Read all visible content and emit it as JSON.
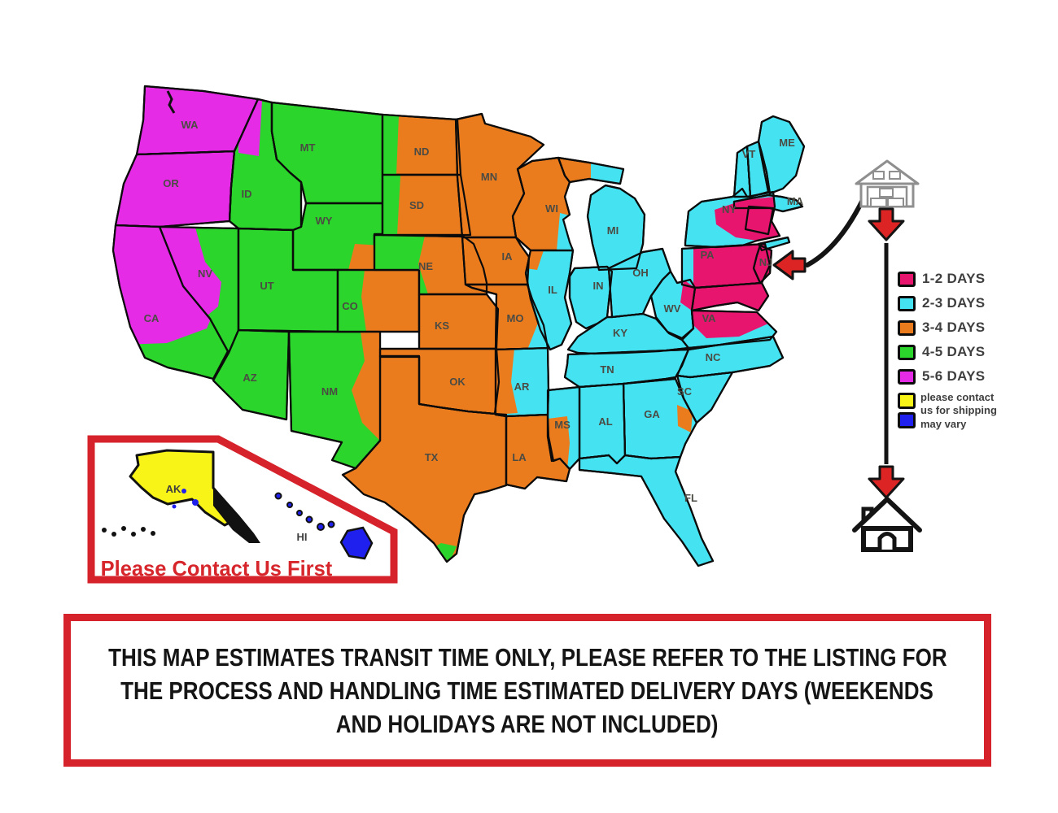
{
  "legend": {
    "items": [
      {
        "key": "1-2",
        "label": "1-2 DAYS",
        "color": "#E8156E"
      },
      {
        "key": "2-3",
        "label": "2-3 DAYS",
        "color": "#45E3F2"
      },
      {
        "key": "3-4",
        "label": "3-4 DAYS",
        "color": "#EB7C1E"
      },
      {
        "key": "4-5",
        "label": "4-5 DAYS",
        "color": "#2BD52B"
      },
      {
        "key": "5-6",
        "label": "5-6 DAYS",
        "color": "#E52BE5"
      },
      {
        "key": "contact",
        "label": "please contact us for shipping",
        "color": "#F8F418"
      },
      {
        "key": "vary",
        "label": "may vary",
        "color": "#2020EE"
      }
    ],
    "text_color": "#3F3F3F"
  },
  "map": {
    "border_color": "#0B0B0B",
    "label_color": "#4B4B44",
    "states": [
      {
        "id": "WA",
        "label": "WA",
        "zone": "5-6"
      },
      {
        "id": "OR",
        "label": "OR",
        "zone": "5-6"
      },
      {
        "id": "CA",
        "label": "CA",
        "zone": "4-5"
      },
      {
        "id": "NV",
        "label": "NV",
        "zone": "4-5"
      },
      {
        "id": "ID",
        "label": "ID",
        "zone": "4-5"
      },
      {
        "id": "MT",
        "label": "MT",
        "zone": "4-5"
      },
      {
        "id": "WY",
        "label": "WY",
        "zone": "4-5"
      },
      {
        "id": "UT",
        "label": "UT",
        "zone": "4-5"
      },
      {
        "id": "AZ",
        "label": "AZ",
        "zone": "4-5"
      },
      {
        "id": "NM",
        "label": "NM",
        "zone": "4-5"
      },
      {
        "id": "CO",
        "label": "CO",
        "zone": "3-4"
      },
      {
        "id": "ND",
        "label": "ND",
        "zone": "3-4"
      },
      {
        "id": "SD",
        "label": "SD",
        "zone": "3-4"
      },
      {
        "id": "NE",
        "label": "NE",
        "zone": "3-4"
      },
      {
        "id": "KS",
        "label": "KS",
        "zone": "3-4"
      },
      {
        "id": "OK",
        "label": "OK",
        "zone": "3-4"
      },
      {
        "id": "TX",
        "label": "TX",
        "zone": "3-4"
      },
      {
        "id": "MN",
        "label": "MN",
        "zone": "3-4"
      },
      {
        "id": "IA",
        "label": "IA",
        "zone": "3-4"
      },
      {
        "id": "MO",
        "label": "MO",
        "zone": "3-4"
      },
      {
        "id": "WI",
        "label": "WI",
        "zone": "3-4"
      },
      {
        "id": "LA",
        "label": "LA",
        "zone": "3-4"
      },
      {
        "id": "MIUP",
        "label": "",
        "zone": "3-4"
      },
      {
        "id": "MI",
        "label": "MI",
        "zone": "2-3"
      },
      {
        "id": "IL",
        "label": "IL",
        "zone": "2-3"
      },
      {
        "id": "IN",
        "label": "IN",
        "zone": "2-3"
      },
      {
        "id": "OH",
        "label": "OH",
        "zone": "2-3"
      },
      {
        "id": "KY",
        "label": "KY",
        "zone": "2-3"
      },
      {
        "id": "TN",
        "label": "TN",
        "zone": "2-3"
      },
      {
        "id": "WV",
        "label": "WV",
        "zone": "2-3"
      },
      {
        "id": "VA",
        "label": "VA",
        "zone": "2-3"
      },
      {
        "id": "NC",
        "label": "NC",
        "zone": "2-3"
      },
      {
        "id": "SC",
        "label": "SC",
        "zone": "2-3"
      },
      {
        "id": "GA",
        "label": "GA",
        "zone": "2-3"
      },
      {
        "id": "AL",
        "label": "AL",
        "zone": "2-3"
      },
      {
        "id": "MS",
        "label": "MS",
        "zone": "2-3"
      },
      {
        "id": "AR",
        "label": "AR",
        "zone": "2-3"
      },
      {
        "id": "FL",
        "label": "FL",
        "zone": "2-3"
      },
      {
        "id": "NY",
        "label": "NY",
        "zone": "2-3"
      },
      {
        "id": "VT",
        "label": "VT",
        "zone": "2-3"
      },
      {
        "id": "NH",
        "label": "",
        "zone": "2-3"
      },
      {
        "id": "ME",
        "label": "ME",
        "zone": "2-3"
      },
      {
        "id": "MA",
        "label": "MA",
        "zone": "2-3"
      },
      {
        "id": "LI",
        "label": "",
        "zone": "2-3"
      },
      {
        "id": "CT",
        "label": "",
        "zone": "1-2"
      },
      {
        "id": "PA",
        "label": "PA",
        "zone": "1-2"
      },
      {
        "id": "NJ",
        "label": "NJ",
        "zone": "1-2"
      },
      {
        "id": "MDDE",
        "label": "",
        "zone": "1-2"
      }
    ],
    "patches": [
      {
        "id": "CA_N",
        "state": "CA",
        "zone": "5-6"
      },
      {
        "id": "NV_W",
        "state": "NV",
        "zone": "5-6"
      },
      {
        "id": "ID_N",
        "state": "ID",
        "zone": "5-6"
      },
      {
        "id": "WY_SE",
        "state": "WY",
        "zone": "3-4"
      },
      {
        "id": "CO_W",
        "state": "CO",
        "zone": "4-5"
      },
      {
        "id": "NM_E",
        "state": "NM",
        "zone": "3-4"
      },
      {
        "id": "NE_W",
        "state": "NE",
        "zone": "4-5"
      },
      {
        "id": "ND_W",
        "state": "ND",
        "zone": "4-5"
      },
      {
        "id": "SD_W",
        "state": "SD",
        "zone": "4-5"
      },
      {
        "id": "TX_TIP",
        "state": "TX",
        "zone": "4-5"
      },
      {
        "id": "MO_E",
        "state": "MO",
        "zone": "2-3"
      },
      {
        "id": "AR_W",
        "state": "AR",
        "zone": "3-4"
      },
      {
        "id": "MS_W",
        "state": "MS",
        "zone": "3-4"
      },
      {
        "id": "GA_C",
        "state": "GA",
        "zone": "3-4"
      },
      {
        "id": "WI_SE",
        "state": "WI",
        "zone": "2-3"
      },
      {
        "id": "MIUP_E",
        "state": "MIUP",
        "zone": "2-3"
      },
      {
        "id": "IL_NW",
        "state": "IL",
        "zone": "3-4"
      },
      {
        "id": "PA_W",
        "state": "PA",
        "zone": "2-3"
      },
      {
        "id": "NY_SE",
        "state": "NY",
        "zone": "1-2"
      },
      {
        "id": "VA_N",
        "state": "VA",
        "zone": "1-2"
      },
      {
        "id": "WV_E",
        "state": "WV",
        "zone": "1-2"
      }
    ]
  },
  "inset": {
    "alaska_label": "AK",
    "hawaii_label": "HI",
    "note": "Please Contact Us First",
    "note_color": "#D6252B",
    "border_color": "#D6222B",
    "alaska_color": "#F8F418",
    "hawaii_color": "#2020EE",
    "label_color": "#3E3E3E"
  },
  "route": {
    "origin_icon": "warehouse-icon",
    "destination_icon": "house-icon",
    "arrow_color": "#DD2424",
    "line_color": "#141414",
    "warehouse_stroke": "#8F8F8F"
  },
  "disclaimer": {
    "lines": [
      "THIS MAP ESTIMATES TRANSIT TIME ONLY, PLEASE REFER TO THE LISTING FOR",
      "THE PROCESS AND HANDLING TIME ESTIMATED DELIVERY DAYS (WEEKENDS",
      "AND HOLIDAYS ARE NOT INCLUDED)"
    ],
    "border_color": "#D6222B",
    "text_color": "#151515"
  }
}
